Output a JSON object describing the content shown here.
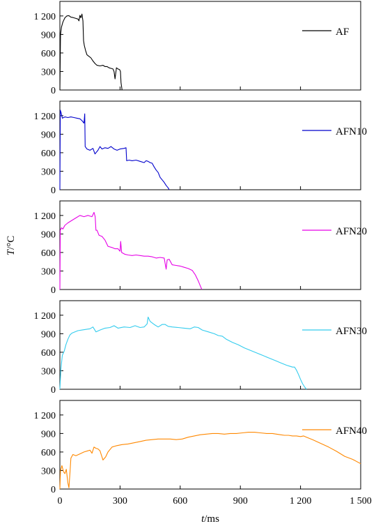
{
  "chart_data": {
    "type": "line",
    "layout": "stacked-panels",
    "xlabel_italic": "t",
    "xlabel_unit": "/ms",
    "ylabel_italic": "T",
    "ylabel_unit": "/°C",
    "xlim": [
      0,
      1500
    ],
    "ylim": [
      0,
      1300
    ],
    "x_ticks": [
      0,
      300,
      600,
      900,
      1200,
      1500
    ],
    "x_tick_labels": [
      "0",
      "300",
      "600",
      "900",
      "1 200",
      "1 500"
    ],
    "y_ticks": [
      0,
      300,
      600,
      900,
      1200
    ],
    "y_tick_labels": [
      "0",
      "300",
      "600",
      "900",
      "1 200"
    ],
    "legend_position": "top-right",
    "series": [
      {
        "name": "AF",
        "color": "#000000",
        "points": [
          [
            0,
            0
          ],
          [
            3,
            900
          ],
          [
            8,
            1020
          ],
          [
            15,
            1100
          ],
          [
            25,
            1170
          ],
          [
            35,
            1200
          ],
          [
            45,
            1205
          ],
          [
            55,
            1180
          ],
          [
            65,
            1175
          ],
          [
            80,
            1160
          ],
          [
            90,
            1150
          ],
          [
            95,
            1120
          ],
          [
            100,
            1210
          ],
          [
            105,
            1170
          ],
          [
            110,
            1230
          ],
          [
            115,
            1120
          ],
          [
            118,
            800
          ],
          [
            122,
            720
          ],
          [
            128,
            640
          ],
          [
            135,
            570
          ],
          [
            145,
            545
          ],
          [
            155,
            520
          ],
          [
            165,
            470
          ],
          [
            175,
            430
          ],
          [
            185,
            400
          ],
          [
            200,
            390
          ],
          [
            215,
            400
          ],
          [
            225,
            380
          ],
          [
            235,
            380
          ],
          [
            245,
            360
          ],
          [
            255,
            350
          ],
          [
            265,
            340
          ],
          [
            270,
            300
          ],
          [
            275,
            180
          ],
          [
            282,
            360
          ],
          [
            290,
            340
          ],
          [
            298,
            330
          ],
          [
            302,
            300
          ],
          [
            305,
            120
          ],
          [
            310,
            0
          ]
        ]
      },
      {
        "name": "AFN10",
        "color": "#0000cc",
        "points": [
          [
            0,
            0
          ],
          [
            2,
            1290
          ],
          [
            6,
            1250
          ],
          [
            12,
            1160
          ],
          [
            25,
            1180
          ],
          [
            40,
            1170
          ],
          [
            55,
            1180
          ],
          [
            70,
            1170
          ],
          [
            85,
            1160
          ],
          [
            100,
            1150
          ],
          [
            110,
            1120
          ],
          [
            120,
            1080
          ],
          [
            124,
            1230
          ],
          [
            126,
            700
          ],
          [
            135,
            660
          ],
          [
            150,
            640
          ],
          [
            165,
            670
          ],
          [
            175,
            580
          ],
          [
            190,
            640
          ],
          [
            200,
            700
          ],
          [
            210,
            660
          ],
          [
            225,
            680
          ],
          [
            240,
            670
          ],
          [
            255,
            700
          ],
          [
            270,
            660
          ],
          [
            285,
            640
          ],
          [
            300,
            660
          ],
          [
            320,
            670
          ],
          [
            330,
            680
          ],
          [
            333,
            470
          ],
          [
            345,
            480
          ],
          [
            360,
            470
          ],
          [
            380,
            480
          ],
          [
            400,
            460
          ],
          [
            420,
            440
          ],
          [
            430,
            470
          ],
          [
            440,
            460
          ],
          [
            450,
            440
          ],
          [
            460,
            430
          ],
          [
            470,
            370
          ],
          [
            480,
            320
          ],
          [
            490,
            280
          ],
          [
            500,
            200
          ],
          [
            510,
            160
          ],
          [
            520,
            120
          ],
          [
            530,
            70
          ],
          [
            540,
            30
          ],
          [
            545,
            0
          ]
        ]
      },
      {
        "name": "AFN20",
        "color": "#e600e6",
        "points": [
          [
            0,
            0
          ],
          [
            2,
            960
          ],
          [
            8,
            1000
          ],
          [
            15,
            980
          ],
          [
            25,
            1040
          ],
          [
            40,
            1080
          ],
          [
            60,
            1120
          ],
          [
            80,
            1160
          ],
          [
            100,
            1200
          ],
          [
            120,
            1180
          ],
          [
            140,
            1200
          ],
          [
            160,
            1180
          ],
          [
            170,
            1250
          ],
          [
            176,
            1180
          ],
          [
            180,
            960
          ],
          [
            185,
            960
          ],
          [
            195,
            880
          ],
          [
            210,
            860
          ],
          [
            225,
            800
          ],
          [
            240,
            700
          ],
          [
            260,
            680
          ],
          [
            275,
            660
          ],
          [
            290,
            660
          ],
          [
            300,
            620
          ],
          [
            303,
            780
          ],
          [
            308,
            600
          ],
          [
            325,
            570
          ],
          [
            340,
            560
          ],
          [
            360,
            550
          ],
          [
            380,
            560
          ],
          [
            400,
            550
          ],
          [
            420,
            540
          ],
          [
            440,
            540
          ],
          [
            460,
            530
          ],
          [
            480,
            510
          ],
          [
            500,
            520
          ],
          [
            520,
            510
          ],
          [
            530,
            330
          ],
          [
            535,
            480
          ],
          [
            545,
            490
          ],
          [
            560,
            400
          ],
          [
            580,
            390
          ],
          [
            600,
            380
          ],
          [
            620,
            360
          ],
          [
            640,
            340
          ],
          [
            660,
            310
          ],
          [
            675,
            240
          ],
          [
            690,
            140
          ],
          [
            700,
            60
          ],
          [
            708,
            0
          ]
        ]
      },
      {
        "name": "AFN30",
        "color": "#33ccee",
        "points": [
          [
            0,
            0
          ],
          [
            5,
            320
          ],
          [
            12,
            550
          ],
          [
            22,
            620
          ],
          [
            30,
            720
          ],
          [
            40,
            810
          ],
          [
            50,
            880
          ],
          [
            60,
            910
          ],
          [
            75,
            930
          ],
          [
            90,
            950
          ],
          [
            110,
            960
          ],
          [
            130,
            970
          ],
          [
            150,
            980
          ],
          [
            165,
            1010
          ],
          [
            180,
            930
          ],
          [
            200,
            960
          ],
          [
            225,
            990
          ],
          [
            250,
            1000
          ],
          [
            270,
            1030
          ],
          [
            290,
            990
          ],
          [
            320,
            1010
          ],
          [
            350,
            1000
          ],
          [
            375,
            1030
          ],
          [
            400,
            1000
          ],
          [
            420,
            1010
          ],
          [
            435,
            1060
          ],
          [
            440,
            1170
          ],
          [
            450,
            1100
          ],
          [
            470,
            1050
          ],
          [
            490,
            1010
          ],
          [
            510,
            1050
          ],
          [
            525,
            1050
          ],
          [
            540,
            1020
          ],
          [
            560,
            1010
          ],
          [
            590,
            1000
          ],
          [
            620,
            990
          ],
          [
            650,
            980
          ],
          [
            670,
            1010
          ],
          [
            690,
            1000
          ],
          [
            710,
            960
          ],
          [
            740,
            930
          ],
          [
            770,
            900
          ],
          [
            790,
            870
          ],
          [
            810,
            860
          ],
          [
            830,
            810
          ],
          [
            860,
            760
          ],
          [
            890,
            720
          ],
          [
            920,
            670
          ],
          [
            950,
            630
          ],
          [
            980,
            590
          ],
          [
            1010,
            550
          ],
          [
            1040,
            510
          ],
          [
            1070,
            470
          ],
          [
            1100,
            430
          ],
          [
            1130,
            390
          ],
          [
            1150,
            370
          ],
          [
            1160,
            360
          ],
          [
            1170,
            360
          ],
          [
            1180,
            310
          ],
          [
            1190,
            240
          ],
          [
            1200,
            160
          ],
          [
            1210,
            90
          ],
          [
            1220,
            40
          ],
          [
            1230,
            0
          ]
        ]
      },
      {
        "name": "AFN40",
        "color": "#ff8800",
        "points": [
          [
            0,
            0
          ],
          [
            3,
            300
          ],
          [
            10,
            380
          ],
          [
            18,
            280
          ],
          [
            25,
            250
          ],
          [
            32,
            320
          ],
          [
            40,
            100
          ],
          [
            45,
            20
          ],
          [
            50,
            250
          ],
          [
            55,
            500
          ],
          [
            65,
            560
          ],
          [
            80,
            540
          ],
          [
            100,
            570
          ],
          [
            120,
            600
          ],
          [
            140,
            620
          ],
          [
            150,
            630
          ],
          [
            160,
            580
          ],
          [
            170,
            680
          ],
          [
            180,
            660
          ],
          [
            190,
            650
          ],
          [
            200,
            620
          ],
          [
            215,
            470
          ],
          [
            228,
            520
          ],
          [
            240,
            600
          ],
          [
            260,
            680
          ],
          [
            280,
            700
          ],
          [
            310,
            720
          ],
          [
            340,
            730
          ],
          [
            370,
            750
          ],
          [
            400,
            770
          ],
          [
            430,
            790
          ],
          [
            460,
            800
          ],
          [
            490,
            810
          ],
          [
            520,
            810
          ],
          [
            550,
            810
          ],
          [
            580,
            800
          ],
          [
            610,
            810
          ],
          [
            640,
            840
          ],
          [
            670,
            860
          ],
          [
            700,
            880
          ],
          [
            730,
            890
          ],
          [
            760,
            900
          ],
          [
            790,
            900
          ],
          [
            820,
            890
          ],
          [
            850,
            900
          ],
          [
            880,
            900
          ],
          [
            910,
            910
          ],
          [
            940,
            920
          ],
          [
            970,
            920
          ],
          [
            1000,
            910
          ],
          [
            1030,
            900
          ],
          [
            1060,
            900
          ],
          [
            1080,
            890
          ],
          [
            1100,
            880
          ],
          [
            1120,
            870
          ],
          [
            1140,
            870
          ],
          [
            1160,
            860
          ],
          [
            1180,
            860
          ],
          [
            1200,
            850
          ],
          [
            1215,
            860
          ],
          [
            1230,
            840
          ],
          [
            1260,
            800
          ],
          [
            1300,
            740
          ],
          [
            1340,
            680
          ],
          [
            1380,
            610
          ],
          [
            1420,
            530
          ],
          [
            1460,
            480
          ],
          [
            1500,
            410
          ]
        ]
      }
    ]
  }
}
